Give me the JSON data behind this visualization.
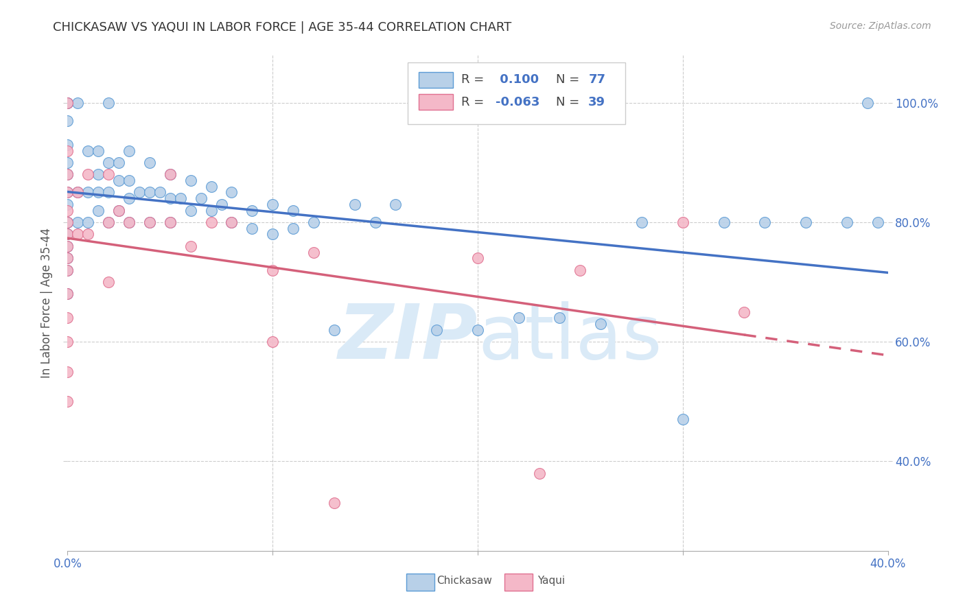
{
  "title": "CHICKASAW VS YAQUI IN LABOR FORCE | AGE 35-44 CORRELATION CHART",
  "source": "Source: ZipAtlas.com",
  "ylabel": "In Labor Force | Age 35-44",
  "xlim": [
    0.0,
    0.4
  ],
  "ylim": [
    0.25,
    1.08
  ],
  "ytick_vals": [
    0.4,
    0.6,
    0.8,
    1.0
  ],
  "xtick_vals": [
    0.0,
    0.1,
    0.2,
    0.3,
    0.4
  ],
  "xtick_labels_show": [
    "0.0%",
    "",
    "",
    "",
    "40.0%"
  ],
  "chickasaw_R": 0.1,
  "chickasaw_N": 77,
  "yaqui_R": -0.063,
  "yaqui_N": 39,
  "chickasaw_color": "#b8d0e8",
  "chickasaw_edge_color": "#5b9bd5",
  "chickasaw_line_color": "#4472c4",
  "yaqui_color": "#f4b8c8",
  "yaqui_edge_color": "#e07090",
  "yaqui_line_color": "#d4607a",
  "watermark_color": "#daeaf7",
  "chickasaw_x": [
    0.0,
    0.0,
    0.0,
    0.0,
    0.0,
    0.0,
    0.0,
    0.0,
    0.0,
    0.0,
    0.0,
    0.0,
    0.0,
    0.0,
    0.0,
    0.005,
    0.005,
    0.005,
    0.01,
    0.01,
    0.01,
    0.015,
    0.015,
    0.015,
    0.015,
    0.02,
    0.02,
    0.02,
    0.02,
    0.025,
    0.025,
    0.025,
    0.03,
    0.03,
    0.03,
    0.03,
    0.035,
    0.04,
    0.04,
    0.04,
    0.045,
    0.05,
    0.05,
    0.05,
    0.055,
    0.06,
    0.06,
    0.065,
    0.07,
    0.07,
    0.075,
    0.08,
    0.08,
    0.09,
    0.09,
    0.1,
    0.1,
    0.11,
    0.11,
    0.12,
    0.13,
    0.14,
    0.15,
    0.16,
    0.18,
    0.2,
    0.22,
    0.24,
    0.26,
    0.28,
    0.3,
    0.32,
    0.34,
    0.36,
    0.38,
    0.395,
    0.39
  ],
  "chickasaw_y": [
    1.0,
    1.0,
    0.97,
    0.93,
    0.9,
    0.88,
    0.85,
    0.83,
    0.8,
    0.8,
    0.78,
    0.76,
    0.74,
    0.72,
    0.68,
    1.0,
    0.85,
    0.8,
    0.92,
    0.85,
    0.8,
    0.92,
    0.88,
    0.85,
    0.82,
    1.0,
    0.9,
    0.85,
    0.8,
    0.9,
    0.87,
    0.82,
    0.92,
    0.87,
    0.84,
    0.8,
    0.85,
    0.9,
    0.85,
    0.8,
    0.85,
    0.88,
    0.84,
    0.8,
    0.84,
    0.87,
    0.82,
    0.84,
    0.86,
    0.82,
    0.83,
    0.85,
    0.8,
    0.82,
    0.79,
    0.83,
    0.78,
    0.82,
    0.79,
    0.8,
    0.62,
    0.83,
    0.8,
    0.83,
    0.62,
    0.62,
    0.64,
    0.64,
    0.63,
    0.8,
    0.47,
    0.8,
    0.8,
    0.8,
    0.8,
    0.8,
    1.0
  ],
  "yaqui_x": [
    0.0,
    0.0,
    0.0,
    0.0,
    0.0,
    0.0,
    0.0,
    0.0,
    0.0,
    0.0,
    0.0,
    0.0,
    0.0,
    0.0,
    0.0,
    0.005,
    0.005,
    0.01,
    0.01,
    0.02,
    0.02,
    0.02,
    0.025,
    0.03,
    0.04,
    0.05,
    0.05,
    0.06,
    0.07,
    0.08,
    0.1,
    0.1,
    0.12,
    0.13,
    0.2,
    0.23,
    0.25,
    0.3,
    0.33
  ],
  "yaqui_y": [
    1.0,
    0.92,
    0.88,
    0.85,
    0.82,
    0.8,
    0.78,
    0.76,
    0.74,
    0.72,
    0.68,
    0.64,
    0.6,
    0.55,
    0.5,
    0.85,
    0.78,
    0.88,
    0.78,
    0.88,
    0.8,
    0.7,
    0.82,
    0.8,
    0.8,
    0.88,
    0.8,
    0.76,
    0.8,
    0.8,
    0.72,
    0.6,
    0.75,
    0.33,
    0.74,
    0.38,
    0.72,
    0.8,
    0.65
  ]
}
